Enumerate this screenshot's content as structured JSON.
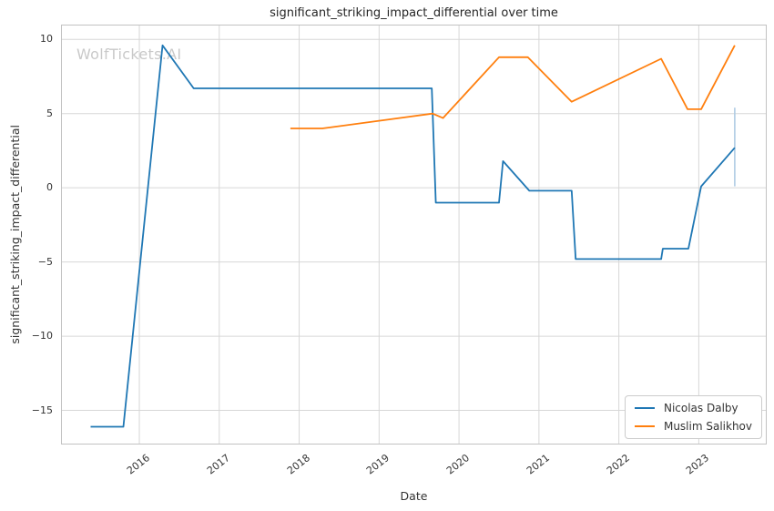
{
  "watermark": "WolfTickets.AI",
  "colors": {
    "background": "#ffffff",
    "grid": "#d7d7d7",
    "spine": "#c2c2c2",
    "text": "#333333",
    "title": "#262626",
    "watermark": "#c9c9c9"
  },
  "chart_data": {
    "type": "line",
    "title": "significant_striking_impact_differential over time",
    "xlabel": "Date",
    "ylabel": "significant_striking_impact_differential",
    "x_ticks": [
      2016,
      2017,
      2018,
      2019,
      2020,
      2021,
      2022,
      2023
    ],
    "x_tick_labels": [
      "2016",
      "2017",
      "2018",
      "2019",
      "2020",
      "2021",
      "2022",
      "2023"
    ],
    "y_ticks": [
      10,
      5,
      0,
      -5,
      -10,
      -15
    ],
    "xlim": [
      2015.02,
      2023.85
    ],
    "ylim": [
      -17.3,
      11.0
    ],
    "grid": true,
    "legend_position": "lower right",
    "series": [
      {
        "name": "Nicolas Dalby",
        "color": "#1f77b4",
        "points": [
          [
            2015.39,
            -16.1
          ],
          [
            2015.8,
            -16.1
          ],
          [
            2016.29,
            9.6
          ],
          [
            2016.68,
            6.7
          ],
          [
            2019.66,
            6.7
          ],
          [
            2019.71,
            -1.0
          ],
          [
            2020.5,
            -1.0
          ],
          [
            2020.55,
            1.8
          ],
          [
            2020.88,
            -0.2
          ],
          [
            2021.41,
            -0.2
          ],
          [
            2021.46,
            -4.8
          ],
          [
            2022.53,
            -4.8
          ],
          [
            2022.55,
            -4.1
          ],
          [
            2022.87,
            -4.1
          ],
          [
            2023.03,
            0.1
          ],
          [
            2023.45,
            2.7
          ]
        ]
      },
      {
        "name": "Muslim Salikhov",
        "color": "#ff7f0e",
        "points": [
          [
            2017.89,
            4.0
          ],
          [
            2018.29,
            4.0
          ],
          [
            2019.67,
            5.0
          ],
          [
            2019.8,
            4.7
          ],
          [
            2020.5,
            8.8
          ],
          [
            2020.86,
            8.8
          ],
          [
            2021.41,
            5.8
          ],
          [
            2022.53,
            8.7
          ],
          [
            2022.86,
            5.3
          ],
          [
            2023.03,
            5.3
          ],
          [
            2023.45,
            9.6
          ]
        ]
      }
    ],
    "final_point_errorbar": {
      "series": "Nicolas Dalby",
      "x": 2023.45,
      "y_low": 0.1,
      "y_high": 5.4,
      "color": "#aecbe3"
    }
  }
}
